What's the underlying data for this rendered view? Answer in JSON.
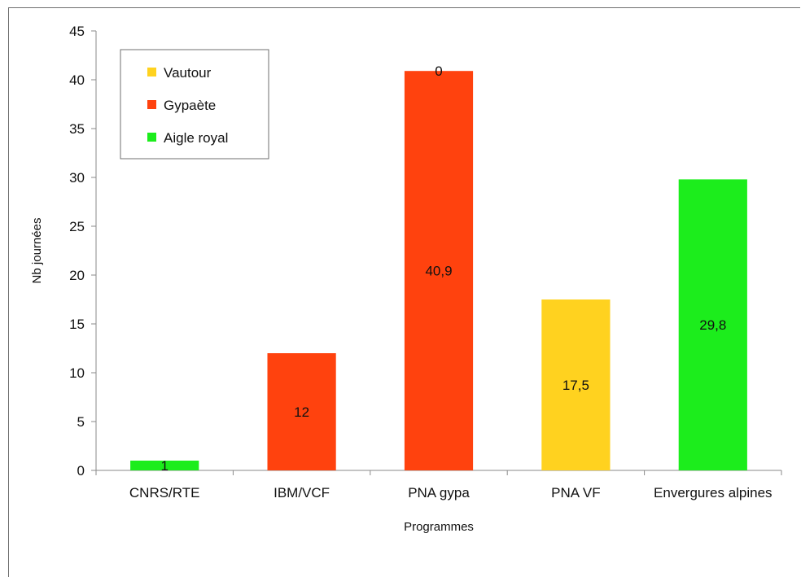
{
  "chart_data": {
    "type": "bar",
    "title": "",
    "xlabel": "Programmes",
    "ylabel": "Nb journées",
    "ylim": [
      0,
      45
    ],
    "yticks": [
      0,
      5,
      10,
      15,
      20,
      25,
      30,
      35,
      40,
      45
    ],
    "grid": false,
    "legend_position": "top-left",
    "categories": [
      "CNRS/RTE",
      "IBM/VCF",
      "PNA gypa",
      "PNA VF",
      "Envergures alpines"
    ],
    "series": [
      {
        "name": "Vautour",
        "color": "#FFD21F",
        "values": [
          0,
          0,
          0,
          17.5,
          0
        ]
      },
      {
        "name": "Gypaète",
        "color": "#FF420E",
        "values": [
          0,
          12,
          40.9,
          0,
          0
        ]
      },
      {
        "name": "Aigle royal",
        "color": "#1CED1C",
        "values": [
          1,
          0,
          0,
          0,
          29.8
        ]
      }
    ],
    "data_labels": [
      {
        "category": "CNRS/RTE",
        "text": "1"
      },
      {
        "category": "IBM/VCF",
        "text": "12"
      },
      {
        "category": "PNA gypa",
        "text": "40,9"
      },
      {
        "category": "PNA gypa",
        "text": "0"
      },
      {
        "category": "PNA VF",
        "text": "17,5"
      },
      {
        "category": "Envergures alpines",
        "text": "29,8"
      }
    ]
  }
}
